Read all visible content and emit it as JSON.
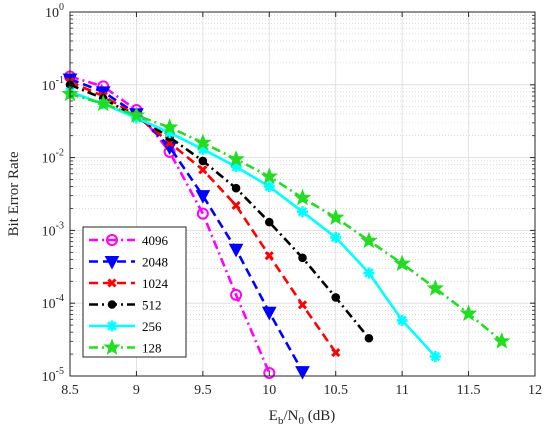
{
  "chart_data": {
    "type": "line",
    "title": "",
    "xlabel": {
      "main": "E",
      "sub1": "b",
      "mid": "/N",
      "sub2": "0",
      "unit": " (dB)"
    },
    "ylabel": "Bit Error Rate",
    "xlim": [
      8.5,
      12
    ],
    "ylim": [
      1e-05,
      1
    ],
    "yscale": "log",
    "grid": true,
    "legend_position": "lower-left",
    "x_ticks": [
      "8.5",
      "9",
      "9.5",
      "10",
      "10.5",
      "11",
      "11.5",
      "12"
    ],
    "y_ticks": [
      {
        "base": "10",
        "exp": "-5"
      },
      {
        "base": "10",
        "exp": "-4"
      },
      {
        "base": "10",
        "exp": "-3"
      },
      {
        "base": "10",
        "exp": "-2"
      },
      {
        "base": "10",
        "exp": "-1"
      },
      {
        "base": "10",
        "exp": "0"
      }
    ],
    "series": [
      {
        "name": "4096",
        "color": "#ff00ff",
        "dash": "dash-dot",
        "marker": "circle",
        "x": [
          8.5,
          8.75,
          9.0,
          9.25,
          9.5,
          9.75,
          10.0
        ],
        "y": [
          0.13,
          0.095,
          0.045,
          0.012,
          0.0017,
          0.00013,
          1.1e-05
        ]
      },
      {
        "name": "2048",
        "color": "#0000ff",
        "dash": "dashed",
        "marker": "triangle-down",
        "x": [
          8.5,
          8.75,
          9.0,
          9.25,
          9.5,
          9.75,
          10.0,
          10.25
        ],
        "y": [
          0.12,
          0.08,
          0.04,
          0.014,
          0.003,
          0.00055,
          7.5e-05,
          1.15e-05
        ]
      },
      {
        "name": "1024",
        "color": "#ff0000",
        "dash": "dashed",
        "marker": "x",
        "x": [
          8.5,
          8.75,
          9.0,
          9.25,
          9.5,
          9.75,
          10.0,
          10.25,
          10.5
        ],
        "y": [
          0.11,
          0.07,
          0.038,
          0.016,
          0.0068,
          0.0022,
          0.00045,
          9.5e-05,
          2.1e-05
        ]
      },
      {
        "name": "512",
        "color": "#000000",
        "dash": "dash-dot",
        "marker": "dot",
        "x": [
          8.5,
          8.75,
          9.0,
          9.25,
          9.5,
          9.75,
          10.0,
          10.25,
          10.5,
          10.75
        ],
        "y": [
          0.1,
          0.065,
          0.036,
          0.019,
          0.009,
          0.0038,
          0.0013,
          0.00042,
          0.00012,
          3.3e-05
        ]
      },
      {
        "name": "256",
        "color": "#00ffff",
        "dash": "solid",
        "marker": "asterisk",
        "x": [
          8.5,
          8.75,
          9.0,
          9.25,
          9.5,
          9.75,
          10.0,
          10.25,
          10.5,
          10.75,
          11.0,
          11.25
        ],
        "y": [
          0.08,
          0.055,
          0.035,
          0.022,
          0.013,
          0.0075,
          0.004,
          0.0018,
          0.0008,
          0.00026,
          5.8e-05,
          1.85e-05
        ]
      },
      {
        "name": "128",
        "color": "#22dd22",
        "dash": "dash-dot",
        "marker": "star",
        "x": [
          8.5,
          8.75,
          9.0,
          9.25,
          9.5,
          9.75,
          10.0,
          10.25,
          10.5,
          10.75,
          11.0,
          11.25,
          11.5,
          11.75
        ],
        "y": [
          0.075,
          0.055,
          0.038,
          0.026,
          0.016,
          0.0095,
          0.0055,
          0.0028,
          0.0015,
          0.00072,
          0.00035,
          0.00016,
          7.2e-05,
          3e-05
        ]
      }
    ]
  }
}
